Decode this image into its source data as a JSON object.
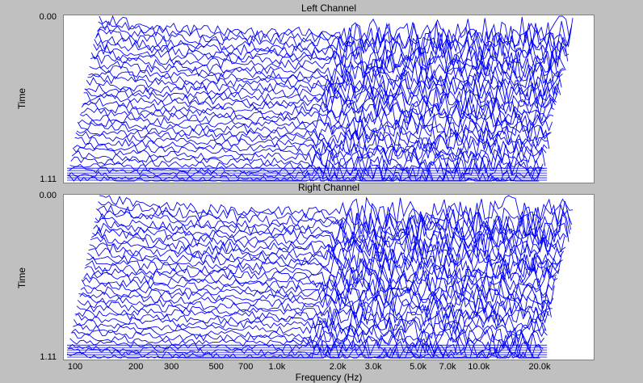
{
  "chart_data": [
    {
      "type": "line",
      "title": "Left Channel",
      "ylabel": "Time",
      "y_ticks": [
        "0.00",
        "1.11"
      ],
      "xlabel": "",
      "x_ticks": [],
      "scale_x": "log",
      "series_color": "#0000ff",
      "seed": 7
    },
    {
      "type": "line",
      "title": "Right Channel",
      "ylabel": "Time",
      "y_ticks": [
        "0.00",
        "1.11"
      ],
      "xlabel": "Frequency (Hz)",
      "x_ticks": [
        "100",
        "200",
        "300",
        "500",
        "700",
        "1.0k",
        "2.0k",
        "3.0k",
        "5.0k",
        "7.0k",
        "10.0k",
        "20.0k"
      ],
      "scale_x": "log",
      "series_color": "#0000ff",
      "seed": 11
    }
  ]
}
